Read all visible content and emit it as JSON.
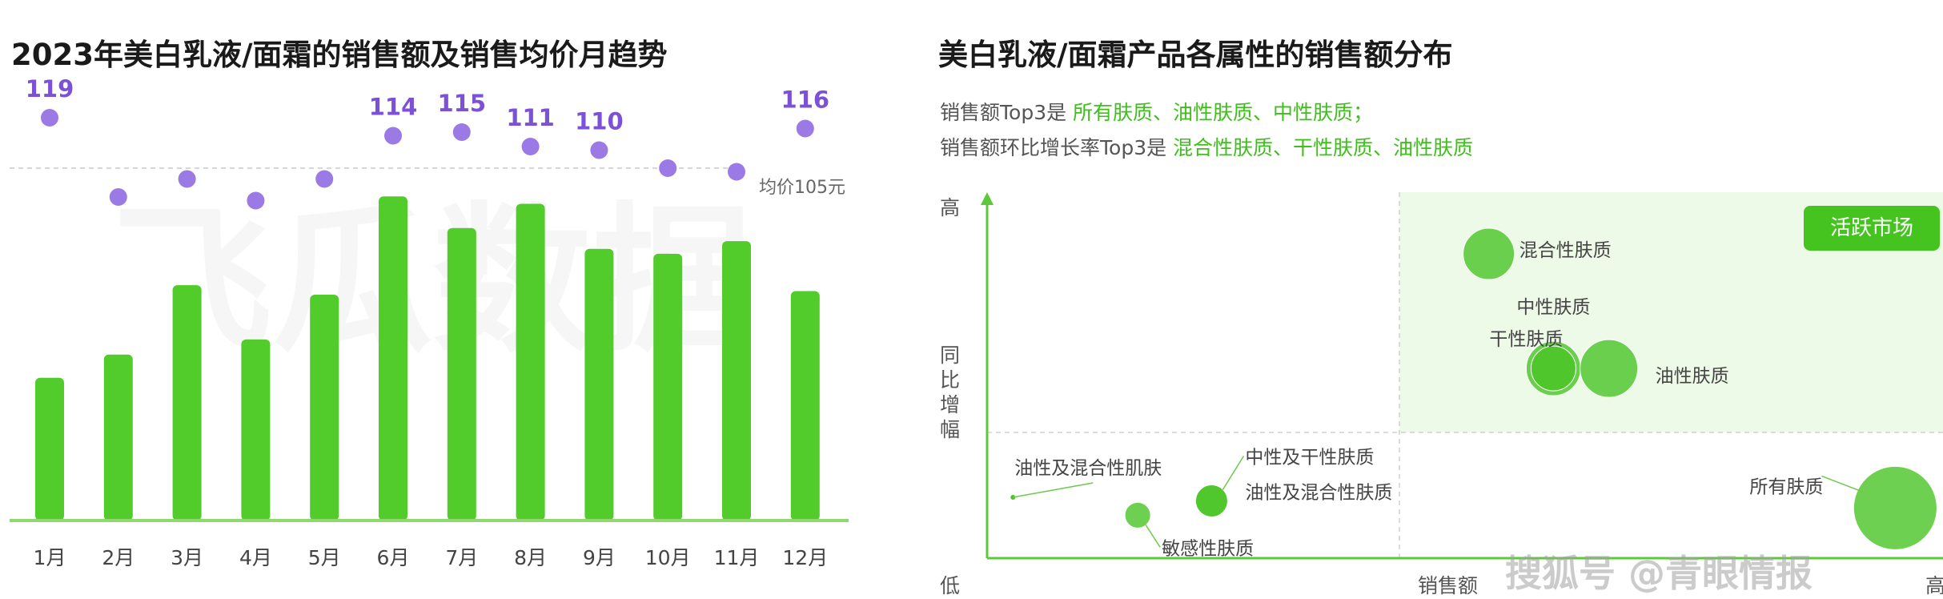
{
  "left_title": "2023年美白乳液/面霜的销售额及销售均价月趋势",
  "right_title": "美白乳液/面霜产品各属性的销售额分布",
  "chart_data": [
    {
      "type": "bar",
      "categories": [
        "1月",
        "2月",
        "3月",
        "4月",
        "5月",
        "6月",
        "7月",
        "8月",
        "9月",
        "10月",
        "11月",
        "12月"
      ],
      "bar_values": [
        0.405,
        0.471,
        0.668,
        0.514,
        0.641,
        0.92,
        0.83,
        0.899,
        0.771,
        0.757,
        0.793,
        0.651
      ],
      "price_series": {
        "values": [
          119,
          97,
          102,
          96,
          102,
          114,
          115,
          111,
          110,
          105,
          104,
          116
        ],
        "labels": [
          "119",
          "",
          "",
          "",
          "",
          "114",
          "115",
          "111",
          "110",
          "",
          "",
          "116"
        ]
      },
      "reference_line": {
        "value": 105,
        "label": "均价105元"
      },
      "y_scale": [
        85,
        125
      ],
      "colors": {
        "bar": "#52cc2a",
        "dot": "#9b7ae6",
        "label": "#7b52d6",
        "axis": "#8fd96f"
      }
    },
    {
      "type": "scatter",
      "summary": {
        "top3_prefix": "销售额Top3是 ",
        "top3_items": "所有肤质、油性肤质、中性肤质；",
        "growth_prefix": "销售额环比增长率Top3是 ",
        "growth_items": "混合性肤质、干性肤质、油性肤质"
      },
      "y_axis": {
        "high": "高",
        "label": [
          "同",
          "比",
          "增",
          "幅"
        ],
        "low": "低"
      },
      "x_axis": {
        "label": "销售额",
        "high": "高"
      },
      "quadrant_badge": "活跃市场",
      "points": [
        {
          "name": "混合性肤质",
          "x": 0.53,
          "y": 0.85,
          "size": 32
        },
        {
          "name": "中性肤质",
          "x": 0.6,
          "y": 0.53,
          "size": 34
        },
        {
          "name": "干性肤质",
          "x": 0.6,
          "y": 0.53,
          "size": 28
        },
        {
          "name": "油性肤质",
          "x": 0.66,
          "y": 0.53,
          "size": 36
        },
        {
          "name": "所有肤质",
          "x": 0.97,
          "y": 0.14,
          "size": 52
        },
        {
          "name": "油性及混合性肌肤",
          "x": 0.015,
          "y": 0.17,
          "size": 3
        },
        {
          "name": "中性及干性肤质",
          "x": 0.23,
          "y": 0.16,
          "size": 20
        },
        {
          "name": "油性及混合性肤质",
          "x": 0.23,
          "y": 0.16,
          "size": 20
        },
        {
          "name": "敏感性肤质",
          "x": 0.15,
          "y": 0.12,
          "size": 16
        }
      ],
      "colors": {
        "point": "#49c424",
        "quad": "#eefae8",
        "axis": "#5cc93a"
      }
    }
  ],
  "watermark": {
    "brand": "飞瓜数据",
    "footer": "搜狐号 @青眼情报"
  }
}
